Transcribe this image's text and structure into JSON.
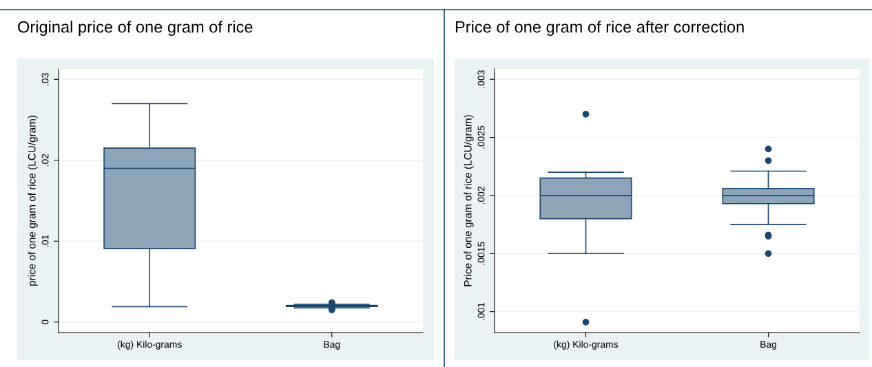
{
  "chart_data": [
    {
      "type": "box",
      "title": "Original price of one gram of rice",
      "ylabel": "price of one gram of rice (LCU/gram)",
      "categories": [
        "(kg) Kilo-grams",
        "Bag"
      ],
      "color": "#8ea4b9",
      "ylim": [
        -0.0013,
        0.0313
      ],
      "yticks": [
        {
          "value": 0,
          "label": "0"
        },
        {
          "value": 0.01,
          "label": ".01"
        },
        {
          "value": 0.02,
          "label": ".02"
        },
        {
          "value": 0.03,
          "label": ".03"
        }
      ],
      "grid": "y",
      "boxes": [
        {
          "low": 0.0019,
          "q1": 0.0091,
          "median": 0.019,
          "q3": 0.0215,
          "high": 0.027
        },
        {
          "low": 0.00175,
          "q1": 0.00193,
          "median": 0.002,
          "q3": 0.00206,
          "high": 0.0022,
          "outliers": [
            0.0024,
            0.0023,
            0.00166,
            0.00165,
            0.0015
          ]
        }
      ]
    },
    {
      "type": "box",
      "title": "Price of one gram of rice after correction",
      "ylabel": "Price of one gram of rice (LCU/gram)",
      "categories": [
        "(kg) Kilo-grams",
        "Bag"
      ],
      "color": "#8ea4b9",
      "ylim": [
        0.00082,
        0.00309
      ],
      "yticks": [
        {
          "value": 0.001,
          "label": ".001"
        },
        {
          "value": 0.0015,
          "label": ".0015"
        },
        {
          "value": 0.002,
          "label": ".002"
        },
        {
          "value": 0.0025,
          "label": ".0025"
        },
        {
          "value": 0.003,
          "label": ".003"
        }
      ],
      "grid": "y",
      "boxes": [
        {
          "low": 0.0015,
          "q1": 0.0018,
          "median": 0.002,
          "q3": 0.00215,
          "high": 0.0022,
          "outliers": [
            0.0027,
            0.00091
          ]
        },
        {
          "low": 0.00175,
          "q1": 0.00193,
          "median": 0.002,
          "q3": 0.00206,
          "high": 0.00221,
          "outliers": [
            0.0024,
            0.0023,
            0.00166,
            0.00165,
            0.0015
          ]
        }
      ]
    }
  ]
}
